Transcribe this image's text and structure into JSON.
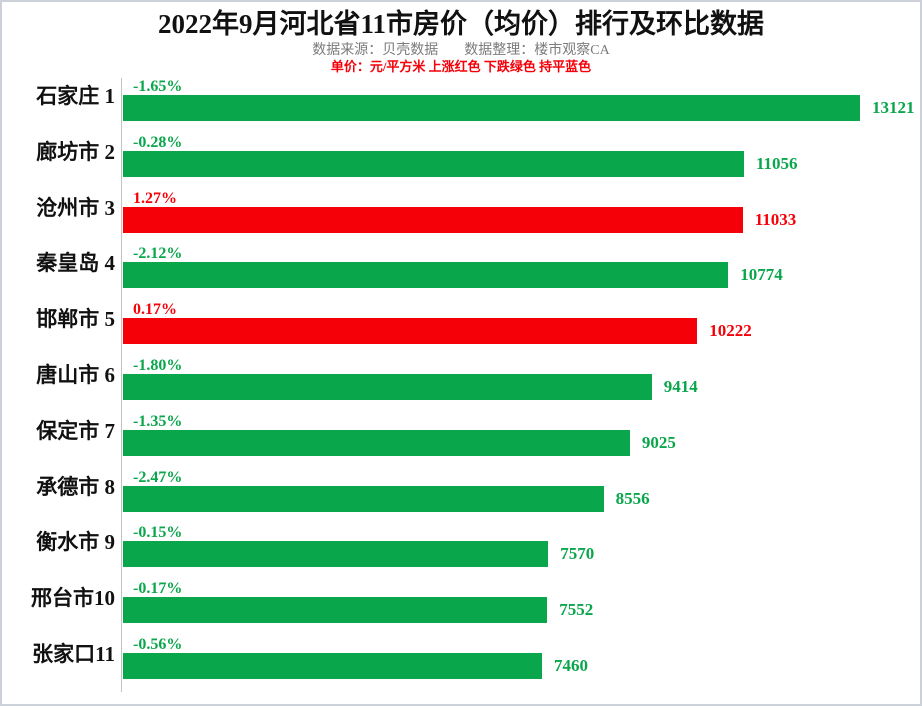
{
  "header": {
    "title": "2022年9月河北省11市房价（均价）排行及环比数据",
    "source_label": "数据来源：贝壳数据",
    "editor_label": "数据整理：楼市观察CA",
    "unit_note": "单价：元/平方米 上涨红色 下跌绿色 持平蓝色"
  },
  "chart_data": {
    "type": "bar",
    "orientation": "horizontal",
    "title": "2022年9月河北省11市房价（均价）排行及环比数据",
    "unit": "元/平方米",
    "x_max": 13121,
    "xlim": [
      0,
      13121
    ],
    "legend_note": "上涨红色 下跌绿色 持平蓝色",
    "colors": {
      "up": "#f50008",
      "down": "#0aa64b",
      "axis": "#c3c3c3"
    },
    "rows": [
      {
        "label": "石家庄 1",
        "rank": 1,
        "mom_change": "-1.65%",
        "value": 13121,
        "trend": "down"
      },
      {
        "label": "廊坊市 2",
        "rank": 2,
        "mom_change": "-0.28%",
        "value": 11056,
        "trend": "down"
      },
      {
        "label": "沧州市 3",
        "rank": 3,
        "mom_change": "1.27%",
        "value": 11033,
        "trend": "up"
      },
      {
        "label": "秦皇岛 4",
        "rank": 4,
        "mom_change": "-2.12%",
        "value": 10774,
        "trend": "down"
      },
      {
        "label": "邯郸市 5",
        "rank": 5,
        "mom_change": "0.17%",
        "value": 10222,
        "trend": "up"
      },
      {
        "label": "唐山市 6",
        "rank": 6,
        "mom_change": "-1.80%",
        "value": 9414,
        "trend": "down"
      },
      {
        "label": "保定市 7",
        "rank": 7,
        "mom_change": "-1.35%",
        "value": 9025,
        "trend": "down"
      },
      {
        "label": "承德市 8",
        "rank": 8,
        "mom_change": "-2.47%",
        "value": 8556,
        "trend": "down"
      },
      {
        "label": "衡水市 9",
        "rank": 9,
        "mom_change": "-0.15%",
        "value": 7570,
        "trend": "down"
      },
      {
        "label": "邢台市10",
        "rank": 10,
        "mom_change": "-0.17%",
        "value": 7552,
        "trend": "down"
      },
      {
        "label": "张家口11",
        "rank": 11,
        "mom_change": "-0.56%",
        "value": 7460,
        "trend": "down"
      }
    ]
  }
}
